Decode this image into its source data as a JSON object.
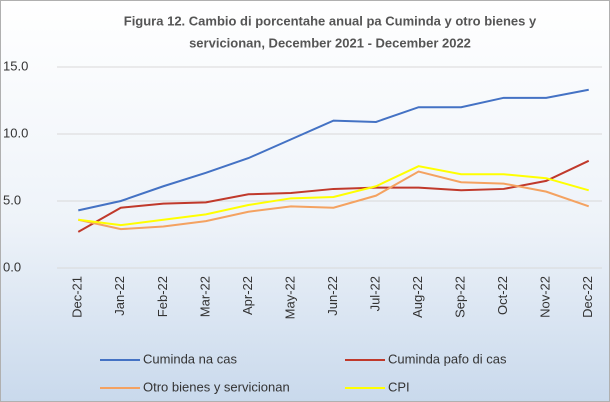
{
  "chart_data": {
    "type": "line",
    "title": [
      "Figura 12. Cambio di porcentahe anual pa Cuminda y otro bienes y",
      "servicionan, December 2021 - December 2022"
    ],
    "categories": [
      "Dec-21",
      "Jan-22",
      "Feb-22",
      "Mar-22",
      "Apr-22",
      "May-22",
      "Jun-22",
      "Jul-22",
      "Aug-22",
      "Sep-22",
      "Oct-22",
      "Nov-22",
      "Dec-22"
    ],
    "series": [
      {
        "name": "Cuminda na cas",
        "color": "#4472c4",
        "values": [
          4.3,
          5.0,
          6.1,
          7.1,
          8.2,
          9.6,
          11.0,
          10.9,
          12.0,
          12.0,
          12.7,
          12.7,
          13.3
        ]
      },
      {
        "name": "Cuminda pafo di cas",
        "color": "#c0392b",
        "values": [
          2.7,
          4.5,
          4.8,
          4.9,
          5.5,
          5.6,
          5.9,
          6.0,
          6.0,
          5.8,
          5.9,
          6.5,
          8.0
        ]
      },
      {
        "name": "Otro bienes y servicionan",
        "color": "#f4a261",
        "values": [
          3.6,
          2.9,
          3.1,
          3.5,
          4.2,
          4.6,
          4.5,
          5.4,
          7.2,
          6.4,
          6.3,
          5.7,
          4.6
        ]
      },
      {
        "name": "CPI",
        "color": "#ffff00",
        "values": [
          3.6,
          3.2,
          3.6,
          4.0,
          4.7,
          5.2,
          5.3,
          6.1,
          7.6,
          7.0,
          7.0,
          6.7,
          5.8
        ]
      }
    ],
    "ylim": [
      0,
      15
    ],
    "yticks": [
      {
        "value": 0,
        "label": "0.0"
      },
      {
        "value": 5,
        "label": "5.0"
      },
      {
        "value": 10,
        "label": "10.0"
      },
      {
        "value": 15,
        "label": "15.0"
      }
    ],
    "grid": true,
    "legend": "bottom"
  }
}
